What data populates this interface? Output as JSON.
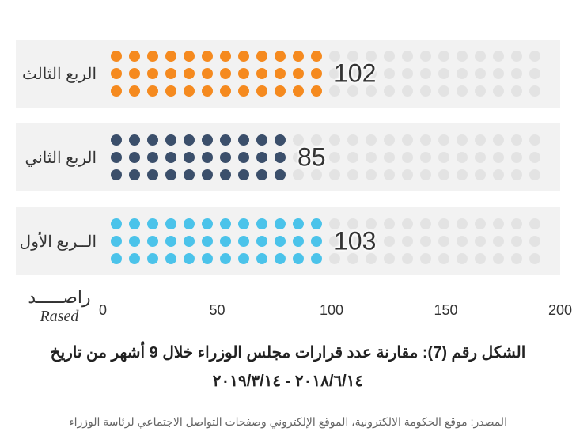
{
  "chart": {
    "type": "pictogram-bar",
    "background_color": "#ffffff",
    "band_color": "#f2f2f2",
    "inactive_dot_color": "#e3e3e3",
    "dot_radius": 7,
    "dot_rows": 3,
    "dots_per_row": 24,
    "dot_gap": 9,
    "units_per_dot": 2.78,
    "max_value": 200,
    "series": [
      {
        "key": "q3",
        "label": "الربع الثالث",
        "value": 102,
        "color": "#f58a1f",
        "filled_per_row": 12
      },
      {
        "key": "q2",
        "label": "الربع الثاني",
        "value": 85,
        "color": "#3b4f6b",
        "filled_per_row": 10
      },
      {
        "key": "q1",
        "label": "الــربع الأول",
        "value": 103,
        "color": "#4bc3ea",
        "filled_per_row": 12
      }
    ],
    "axis": {
      "ticks": [
        0,
        50,
        100,
        150,
        200
      ],
      "tick_fontsize": 18
    },
    "value_label_fontsize": 32,
    "row_label_fontsize": 20
  },
  "brand": {
    "ar": "راصـــــد",
    "en": "Rased"
  },
  "caption_line1": "الشكل رقم (7): مقارنة عدد قرارات مجلس الوزراء خلال 9 أشهر من تاريخ",
  "caption_line2": "٢٠١٨/٦/١٤ - ٢٠١٩/٣/١٤",
  "source": "المصدر: موقع الحكومة الالكترونية، الموقع الإلكتروني وصفحات التواصل الاجتماعي لرئاسة الوزراء"
}
